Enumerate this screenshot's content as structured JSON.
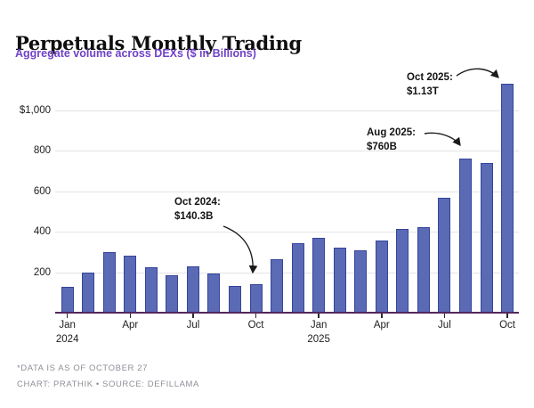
{
  "chart_data": {
    "type": "bar",
    "title": "Perpetuals Monthly Trading",
    "subtitle": "Aggregate volume across DEXs ($ in Billions)",
    "unit": "USD billions",
    "categories": [
      "Jan 2024",
      "Feb 2024",
      "Mar 2024",
      "Apr 2024",
      "May 2024",
      "Jun 2024",
      "Jul 2024",
      "Aug 2024",
      "Sep 2024",
      "Oct 2024",
      "Nov 2024",
      "Dec 2024",
      "Jan 2025",
      "Feb 2025",
      "Mar 2025",
      "Apr 2025",
      "May 2025",
      "Jun 2025",
      "Jul 2025",
      "Aug 2025",
      "Sep 2025",
      "Oct 2025"
    ],
    "values": [
      127,
      200,
      297,
      280,
      223,
      185,
      228,
      192,
      131,
      140.3,
      265,
      344,
      368,
      322,
      308,
      357,
      412,
      420,
      568,
      760,
      740,
      1130
    ],
    "ylim": [
      0,
      1170
    ],
    "grid": true,
    "yticks": [
      {
        "value": 200,
        "label": "200"
      },
      {
        "value": 400,
        "label": "400"
      },
      {
        "value": 600,
        "label": "600"
      },
      {
        "value": 800,
        "label": "800"
      },
      {
        "value": 1000,
        "label": "$1,000"
      }
    ],
    "xticks": [
      {
        "index": 0,
        "label": "Jan",
        "sublabel": "2024"
      },
      {
        "index": 3,
        "label": "Apr",
        "sublabel": ""
      },
      {
        "index": 6,
        "label": "Jul",
        "sublabel": ""
      },
      {
        "index": 9,
        "label": "Oct",
        "sublabel": ""
      },
      {
        "index": 12,
        "label": "Jan",
        "sublabel": "2025"
      },
      {
        "index": 15,
        "label": "Apr",
        "sublabel": ""
      },
      {
        "index": 18,
        "label": "Jul",
        "sublabel": ""
      },
      {
        "index": 21,
        "label": "Oct",
        "sublabel": ""
      }
    ],
    "annotations": [
      {
        "id": "oct-2024",
        "line1": "Oct 2024:",
        "line2": "$140.3B"
      },
      {
        "id": "aug-2025",
        "line1": "Aug 2025:",
        "line2": "$760B"
      },
      {
        "id": "oct-2025",
        "line1": "Oct 2025:",
        "line2": "$1.13T"
      }
    ],
    "colors": {
      "bar": "#5a6ab5",
      "bar_border": "#35449b",
      "baseline": "#54265e",
      "grid": "#e4e4e8",
      "subtitle": "#6f42c8",
      "arrow": "#1a1a1a",
      "footer_text": "#8f8f99"
    }
  },
  "footer": {
    "line1": "*DATA IS AS OF OCTOBER 27",
    "line2": "CHART: PRATHIK • SOURCE: DEFILLAMA"
  }
}
